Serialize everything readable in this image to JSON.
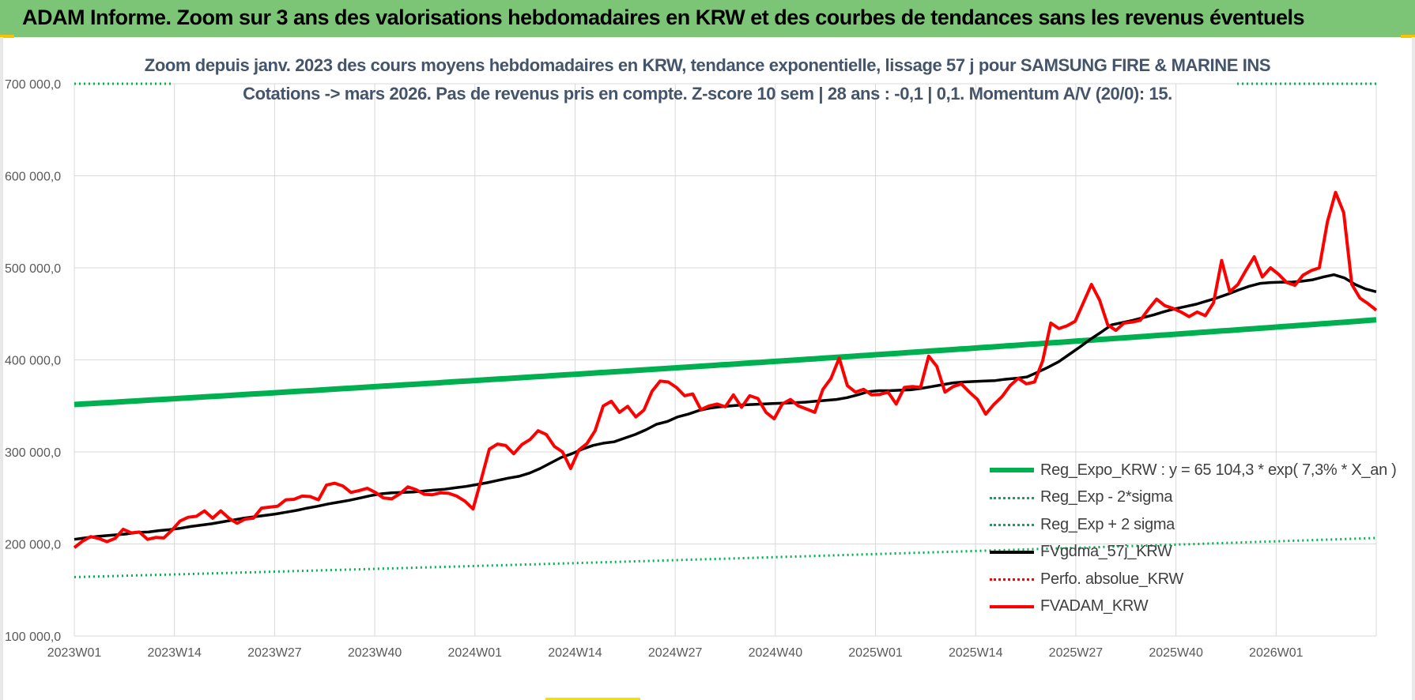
{
  "header": {
    "title": "ADAM Informe. Zoom sur 3 ans des valorisations hebdomadaires en KRW et des courbes de tendances sans les revenus éventuels"
  },
  "chart_data": {
    "type": "line",
    "title": "Zoom depuis janv. 2023 des cours moyens hebdomadaires en KRW, tendance exponentielle, lissage 57 j pour SAMSUNG FIRE & MARINE INS",
    "subtitle": "Cotations -> mars 2026. Pas de revenus pris en compte. Z-score 10 sem | 28 ans : -0,1 | 0,1. Momentum A/V (20/0): 15.",
    "y_tick_labels": [
      "100 000,0",
      "200 000,0",
      "300 000,0",
      "400 000,0",
      "500 000,0",
      "600 000,0",
      "700 000,0"
    ],
    "x_tick_labels": [
      "2023W01",
      "2023W14",
      "2023W27",
      "2023W40",
      "2024W01",
      "2024W14",
      "2024W27",
      "2024W40",
      "2025W01",
      "2025W14",
      "2025W27",
      "2025W40",
      "2026W01"
    ],
    "ylim": [
      100000,
      700000
    ],
    "x_weeks": 170,
    "grid": true,
    "legend_position": "bottom-right",
    "series": [
      {
        "name": "Reg_Expo_KRW : y = 65 104,3 * exp( 7,3% *  X_an )",
        "color": "#00b050",
        "style": "solid-thick",
        "start": 351500,
        "end": 443500
      },
      {
        "name": "Reg_Exp - 2*sigma",
        "color": "#00b050",
        "style": "dotted",
        "start": 164000,
        "end": 206500
      },
      {
        "name": "Reg_Exp + 2 sigma",
        "color": "#00b050",
        "style": "dotted",
        "start": 700000,
        "end": 700000
      },
      {
        "name": "FVgdma_57j_KRW",
        "color": "#000000",
        "style": "solid",
        "values": [
          205000,
          206500,
          208000,
          209000,
          210000,
          211000,
          212500,
          213000,
          214500,
          215500,
          217000,
          219000,
          220500,
          222000,
          224000,
          226000,
          228000,
          229500,
          231000,
          232500,
          234500,
          236500,
          239000,
          241000,
          243500,
          245500,
          247500,
          250000,
          252500,
          254500,
          255500,
          256000,
          256500,
          257500,
          258500,
          259500,
          261000,
          262500,
          264500,
          266500,
          269000,
          271500,
          273500,
          277000,
          282000,
          288000,
          294000,
          298000,
          303000,
          307000,
          309500,
          311000,
          315000,
          319000,
          324000,
          330000,
          333000,
          338000,
          341000,
          345000,
          347500,
          349000,
          350000,
          351000,
          351500,
          352000,
          352500,
          353000,
          353500,
          354000,
          355000,
          356000,
          357000,
          359000,
          362000,
          365500,
          366500,
          366500,
          367000,
          367500,
          369000,
          371000,
          373000,
          375000,
          376000,
          376500,
          377000,
          377500,
          379000,
          380000,
          381500,
          386500,
          392000,
          398000,
          406000,
          414000,
          422500,
          430000,
          438000,
          440500,
          443000,
          446000,
          449000,
          452500,
          455500,
          458000,
          460500,
          464000,
          467500,
          471500,
          476000,
          480000,
          483000,
          484000,
          484500,
          484500,
          485500,
          487000,
          490000,
          492500,
          489000,
          482000,
          477000,
          474000
        ]
      },
      {
        "name": "Perfo. absolue_KRW",
        "color": "#ff0000",
        "style": "dotted",
        "values": []
      },
      {
        "name": "FVADAM_KRW",
        "color": "#ff0000",
        "style": "solid-thick",
        "values": [
          196000,
          203000,
          208000,
          206000,
          202500,
          206000,
          216000,
          212000,
          213000,
          205000,
          207000,
          206500,
          215000,
          225000,
          229000,
          230000,
          236000,
          228000,
          236000,
          228000,
          222500,
          227000,
          228000,
          239000,
          240000,
          241000,
          248000,
          248500,
          252000,
          251500,
          248000,
          264000,
          266000,
          263000,
          256000,
          258000,
          260500,
          256000,
          250000,
          249000,
          254500,
          262000,
          259000,
          254000,
          253500,
          255500,
          255000,
          252000,
          246500,
          238000,
          270000,
          303000,
          308500,
          307000,
          298000,
          308000,
          313500,
          323000,
          319000,
          306000,
          300000,
          282000,
          302000,
          309000,
          323000,
          350000,
          355000,
          343000,
          349500,
          338000,
          345500,
          366000,
          377000,
          376000,
          370000,
          361000,
          363000,
          346000,
          350000,
          352000,
          349000,
          362000,
          348500,
          361000,
          358000,
          343000,
          336000,
          352000,
          357000,
          350000,
          346500,
          343000,
          368000,
          380000,
          402000,
          372000,
          365000,
          368000,
          362000,
          362500,
          365000,
          352000,
          370000,
          371000,
          370000,
          404000,
          393000,
          365000,
          371000,
          374000,
          365000,
          357000,
          341000,
          351500,
          360000,
          372000,
          380000,
          374000,
          376000,
          399000,
          440000,
          434000,
          437000,
          442000,
          462000,
          482000,
          465000,
          438000,
          432000,
          440000,
          441000,
          443000,
          455000,
          466000,
          459000,
          456000,
          452000,
          447000,
          452000,
          448000,
          462000,
          508000,
          474000,
          482000,
          497500,
          512000,
          490000,
          500000,
          493000,
          484000,
          481000,
          492000,
          497000,
          500000,
          550000,
          582000,
          560000,
          482000,
          467000,
          461000,
          454000
        ]
      }
    ]
  }
}
